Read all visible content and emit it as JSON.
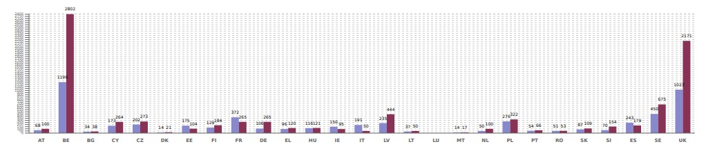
{
  "chart_data": {
    "type": "bar",
    "categories": [
      "AT",
      "BE",
      "BG",
      "CY",
      "CZ",
      "DK",
      "EE",
      "FI",
      "FR",
      "DE",
      "EL",
      "HU",
      "IE",
      "IT",
      "LV",
      "LT",
      "LU",
      "MT",
      "NL",
      "PL",
      "PT",
      "RO",
      "SK",
      "SI",
      "ES",
      "SE",
      "UK"
    ],
    "series": [
      {
        "color": "#8888cc",
        "values": [
          68,
          1199,
          34,
          173,
          202,
          14,
          175,
          129,
          372,
          106,
          96,
          116,
          150,
          191,
          235,
          37,
          0,
          14,
          50,
          276,
          54,
          51,
          87,
          70,
          243,
          450,
          1023
        ]
      },
      {
        "color": "#883355",
        "values": [
          100,
          2802,
          38,
          264,
          273,
          21,
          104,
          184,
          265,
          265,
          120,
          121,
          95,
          50,
          444,
          50,
          0,
          17,
          100,
          322,
          66,
          53,
          109,
          154,
          179,
          675,
          2171
        ]
      }
    ],
    "ylim": [
      0,
      2810
    ],
    "yticks": [
      0,
      50,
      100,
      150,
      200,
      250,
      300,
      350,
      400,
      450,
      500,
      550,
      600,
      650,
      700,
      750,
      800,
      850,
      900,
      950,
      1000,
      1050,
      1100,
      1150,
      1200,
      1250,
      1300,
      1350,
      1400,
      1450,
      1500,
      1550,
      1600,
      1650,
      1700,
      1750,
      1800,
      1850,
      1900,
      1950,
      2000,
      2050,
      2100,
      2150,
      2200,
      2250,
      2300,
      2350,
      2400,
      2450,
      2500,
      2550,
      2600,
      2650,
      2700,
      2750,
      2800
    ],
    "grid": true,
    "data_labels": true
  }
}
